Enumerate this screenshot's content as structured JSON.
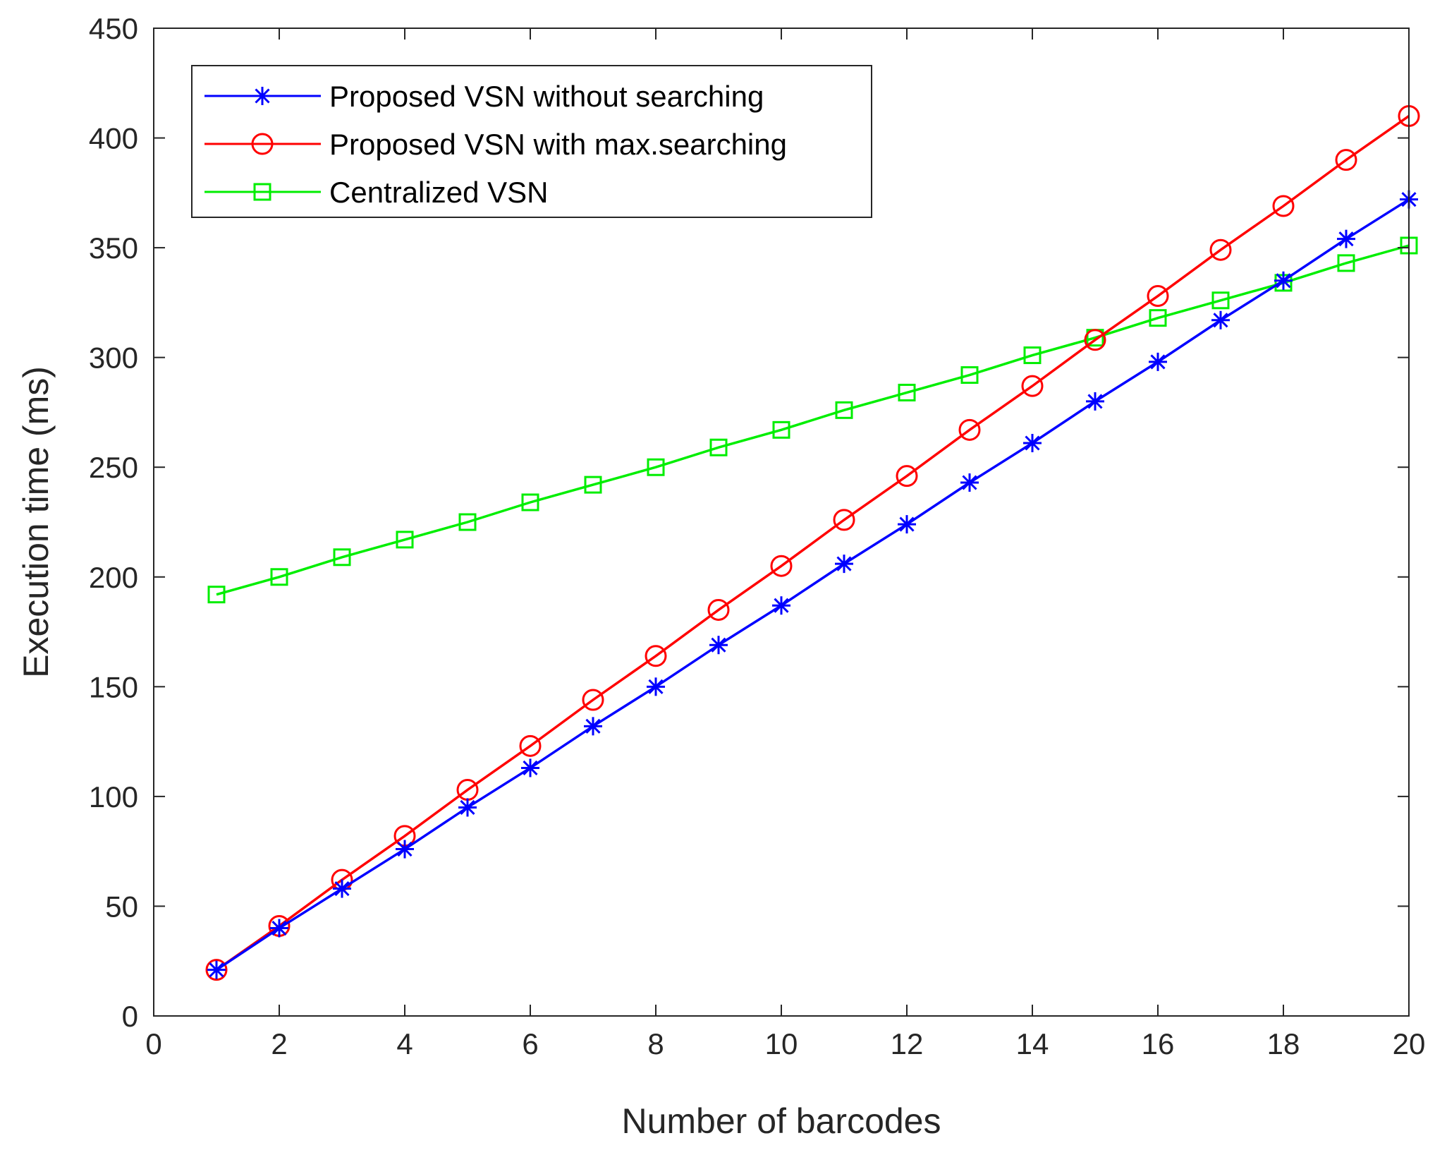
{
  "chart_data": {
    "type": "line",
    "title": "",
    "xlabel": "Number of barcodes",
    "ylabel": "Execution time (ms)",
    "xlim": [
      0,
      20
    ],
    "ylim": [
      0,
      450
    ],
    "xticks": [
      0,
      2,
      4,
      6,
      8,
      10,
      12,
      14,
      16,
      18,
      20
    ],
    "yticks": [
      0,
      50,
      100,
      150,
      200,
      250,
      300,
      350,
      400,
      450
    ],
    "grid": false,
    "legend_position": "top-left",
    "x": [
      1,
      2,
      3,
      4,
      5,
      6,
      7,
      8,
      9,
      10,
      11,
      12,
      13,
      14,
      15,
      16,
      17,
      18,
      19,
      20
    ],
    "series": [
      {
        "name": "Proposed VSN without searching",
        "color": "#0000ff",
        "marker": "star",
        "values": [
          21,
          40,
          58,
          76,
          95,
          113,
          132,
          150,
          169,
          187,
          206,
          224,
          243,
          261,
          280,
          298,
          317,
          335,
          354,
          372
        ]
      },
      {
        "name": "Proposed VSN with max.searching",
        "color": "#ff0000",
        "marker": "circle",
        "values": [
          21,
          41,
          62,
          82,
          103,
          123,
          144,
          164,
          185,
          205,
          226,
          246,
          267,
          287,
          308,
          328,
          349,
          369,
          390,
          410
        ]
      },
      {
        "name": "Centralized VSN",
        "color": "#00ee00",
        "marker": "square",
        "values": [
          192,
          200,
          209,
          217,
          225,
          234,
          242,
          250,
          259,
          267,
          276,
          284,
          292,
          301,
          309,
          318,
          326,
          334,
          343,
          351
        ]
      }
    ]
  }
}
